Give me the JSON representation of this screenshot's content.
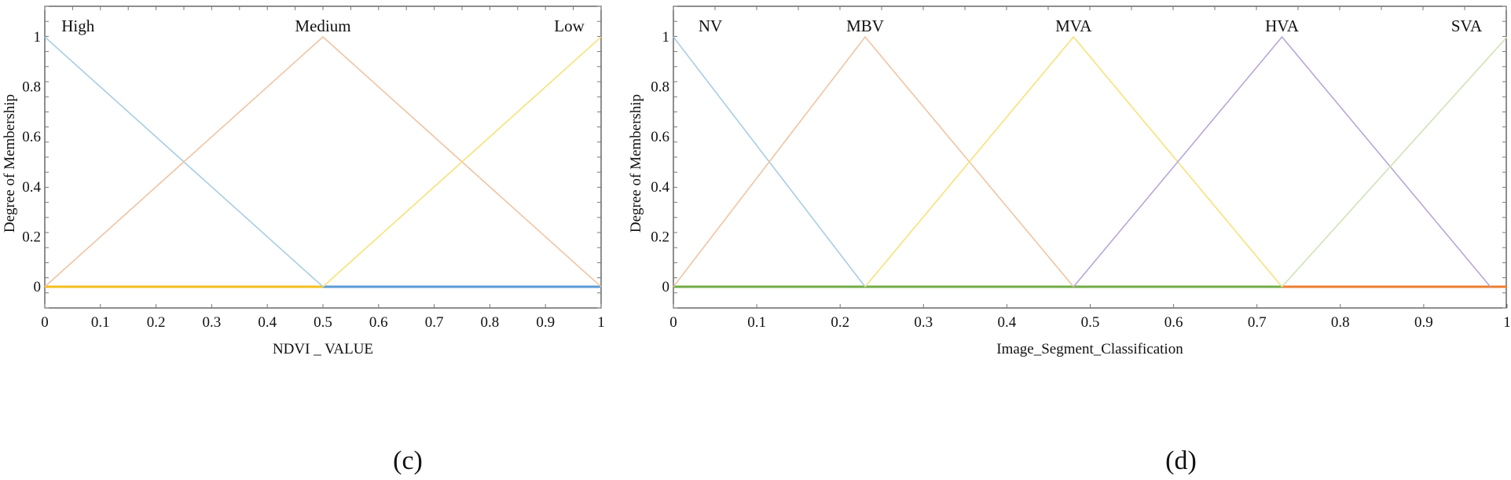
{
  "chart_data": [
    {
      "type": "line",
      "caption": "(c)",
      "xlabel": "NDVI _ VALUE",
      "ylabel": "Degree of Membership",
      "xlim": [
        0,
        1
      ],
      "ylim": [
        0,
        1
      ],
      "x_ticks": [
        "0",
        "0.1",
        "0.2",
        "0.3",
        "0.4",
        "0.5",
        "0.6",
        "0.7",
        "0.8",
        "0.9",
        "1"
      ],
      "y_ticks": [
        "0",
        "0.2",
        "0.4",
        "0.6",
        "0.8",
        "1"
      ],
      "grid": false,
      "series": [
        {
          "name": "High",
          "color": "#a9cde3",
          "x": [
            0,
            0.5
          ],
          "y": [
            1,
            0
          ],
          "label_x": 0.03,
          "label_anchor": "start"
        },
        {
          "name": "Medium",
          "color": "#f0c4a3",
          "x": [
            0,
            0.5,
            1
          ],
          "y": [
            0,
            1,
            0
          ],
          "label_x": 0.5,
          "label_anchor": "middle"
        },
        {
          "name": "Low",
          "color": "#f6e27a",
          "x": [
            0.5,
            1
          ],
          "y": [
            0,
            1
          ],
          "label_x": 0.97,
          "label_anchor": "end"
        }
      ],
      "baseline_segments": [
        {
          "x": [
            0,
            0.5
          ],
          "color": "#f2c01e"
        },
        {
          "x": [
            0.5,
            1
          ],
          "color": "#5b9bd5"
        }
      ]
    },
    {
      "type": "line",
      "caption": "(d)",
      "xlabel": "Image_Segment_Classification",
      "ylabel": "Degree of Membership",
      "xlim": [
        0,
        1
      ],
      "ylim": [
        0,
        1
      ],
      "x_ticks": [
        "0",
        "0.1",
        "0.2",
        "0.3",
        "0.4",
        "0.5",
        "0.6",
        "0.7",
        "0.8",
        "0.9",
        "1"
      ],
      "y_ticks": [
        "0",
        "0.2",
        "0.4",
        "0.6",
        "0.8",
        "1"
      ],
      "grid": false,
      "series": [
        {
          "name": "NV",
          "color": "#a9cde3",
          "x": [
            0,
            0.23
          ],
          "y": [
            1,
            0
          ],
          "label_x": 0.03,
          "label_anchor": "start"
        },
        {
          "name": "MBV",
          "color": "#f0c4a3",
          "x": [
            0,
            0.23,
            0.48
          ],
          "y": [
            0,
            1,
            0
          ],
          "label_x": 0.23,
          "label_anchor": "middle"
        },
        {
          "name": "MVA",
          "color": "#f6e27a",
          "x": [
            0.23,
            0.48,
            0.73
          ],
          "y": [
            0,
            1,
            0
          ],
          "label_x": 0.48,
          "label_anchor": "middle"
        },
        {
          "name": "HVA",
          "color": "#b9a6d6",
          "x": [
            0.48,
            0.73,
            0.98
          ],
          "y": [
            0,
            1,
            0
          ],
          "label_x": 0.73,
          "label_anchor": "middle"
        },
        {
          "name": "SVA",
          "color": "#cfe3b5",
          "x": [
            0.73,
            1
          ],
          "y": [
            0,
            1
          ],
          "label_x": 0.97,
          "label_anchor": "end"
        }
      ],
      "baseline_segments": [
        {
          "x": [
            0,
            0.73
          ],
          "color": "#70ad47"
        },
        {
          "x": [
            0.73,
            1
          ],
          "color": "#ed7d31"
        }
      ]
    }
  ]
}
